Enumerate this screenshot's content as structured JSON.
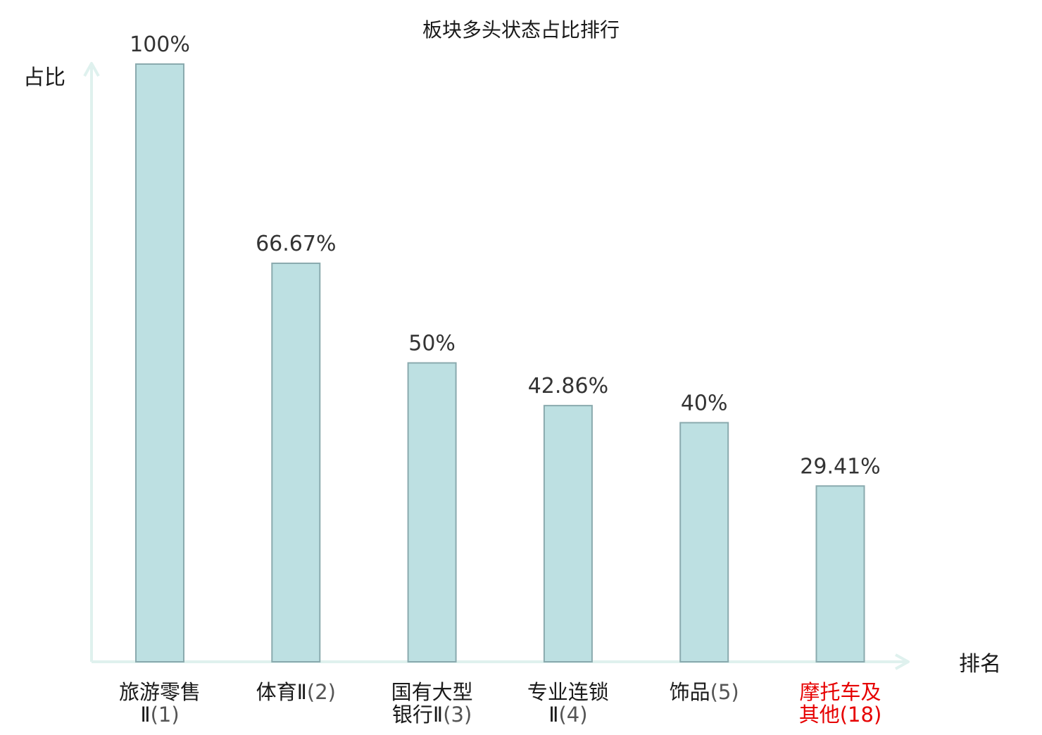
{
  "chart_data": {
    "type": "bar",
    "title": "板块多头状态占比排行",
    "ylabel": "占比",
    "xlabel": "排名",
    "ylim": [
      0,
      100
    ],
    "grid": false,
    "categories": [
      {
        "name": [
          "旅游零售",
          "Ⅱ"
        ],
        "rank": "(1)",
        "highlight": false
      },
      {
        "name": [
          "体育Ⅱ"
        ],
        "rank": "(2)",
        "highlight": false
      },
      {
        "name": [
          "国有大型",
          "银行Ⅱ"
        ],
        "rank": "(3)",
        "highlight": false
      },
      {
        "name": [
          "专业连锁",
          "Ⅱ"
        ],
        "rank": "(4)",
        "highlight": false
      },
      {
        "name": [
          "饰品"
        ],
        "rank": "(5)",
        "highlight": false
      },
      {
        "name": [
          "摩托车及",
          "其他"
        ],
        "rank": "(18)",
        "highlight": true
      }
    ],
    "values": [
      100,
      66.67,
      50,
      42.86,
      40,
      29.41
    ],
    "value_labels": [
      "100%",
      "66.67%",
      "50%",
      "42.86%",
      "40%",
      "29.41%"
    ]
  },
  "colors": {
    "bar_fill": "#bde0e2",
    "bar_stroke": "#8aaaae",
    "axis": "#dff1ee",
    "text": "#1a1a1a",
    "value_text": "#333333",
    "rank_text": "#555555",
    "highlight": "#e60000"
  }
}
